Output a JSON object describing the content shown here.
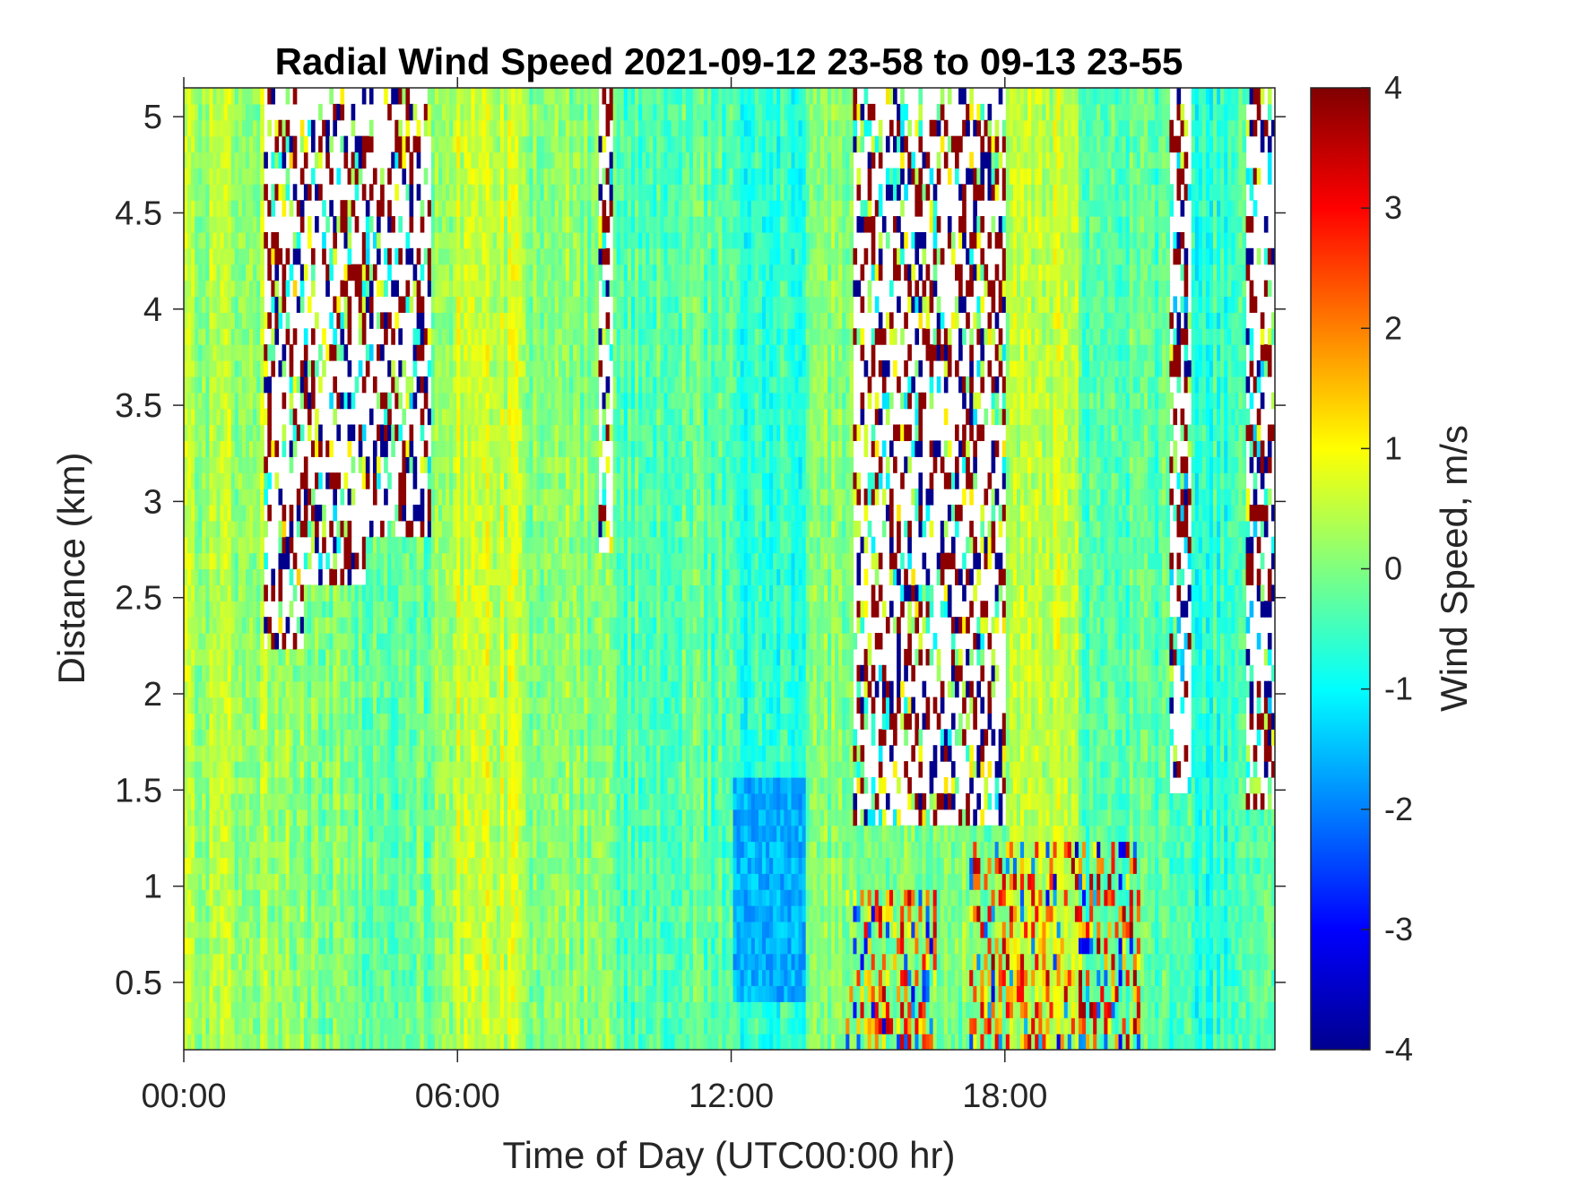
{
  "chart_data": {
    "type": "heatmap",
    "title": "Radial Wind Speed 2021-09-12 23-58 to 09-13 23-55",
    "xlabel": "Time of Day (UTC00:00 hr)",
    "ylabel": "Distance (km)",
    "colorbar_label": "Wind Speed, m/s",
    "colormap": "jet",
    "x_range_hours": [
      0,
      23.92
    ],
    "x_ticks": [
      {
        "value": 0,
        "label": "00:00"
      },
      {
        "value": 6,
        "label": "06:00"
      },
      {
        "value": 12,
        "label": "12:00"
      },
      {
        "value": 18,
        "label": "18:00"
      }
    ],
    "ylim": [
      0.15,
      5.15
    ],
    "y_ticks": [
      {
        "value": 0.5,
        "label": "0.5"
      },
      {
        "value": 1,
        "label": "1"
      },
      {
        "value": 1.5,
        "label": "1.5"
      },
      {
        "value": 2,
        "label": "2"
      },
      {
        "value": 2.5,
        "label": "2.5"
      },
      {
        "value": 3,
        "label": "3"
      },
      {
        "value": 3.5,
        "label": "3.5"
      },
      {
        "value": 4,
        "label": "4"
      },
      {
        "value": 4.5,
        "label": "4.5"
      },
      {
        "value": 5,
        "label": "5"
      }
    ],
    "clim": [
      -4,
      4
    ],
    "colorbar_ticks": [
      {
        "value": 4,
        "label": "4"
      },
      {
        "value": 3,
        "label": "3"
      },
      {
        "value": 2,
        "label": "2"
      },
      {
        "value": 1,
        "label": "1"
      },
      {
        "value": 0,
        "label": "0"
      },
      {
        "value": -1,
        "label": "-1"
      },
      {
        "value": -2,
        "label": "-2"
      },
      {
        "value": -3,
        "label": "-3"
      },
      {
        "value": -4,
        "label": "-4"
      }
    ],
    "time_segments": [
      {
        "t0": 0.0,
        "t1": 1.75,
        "base": 0.3,
        "valid_top": 5.15
      },
      {
        "t0": 1.75,
        "t1": 2.6,
        "base": 0.2,
        "valid_top": 2.25
      },
      {
        "t0": 2.6,
        "t1": 4.0,
        "base": -0.1,
        "valid_top": 2.6
      },
      {
        "t0": 4.0,
        "t1": 5.45,
        "base": -0.2,
        "valid_top": 2.85
      },
      {
        "t0": 5.45,
        "t1": 6.0,
        "base": 0.2,
        "valid_top": 5.15
      },
      {
        "t0": 6.0,
        "t1": 7.5,
        "base": 0.6,
        "valid_top": 5.15
      },
      {
        "t0": 7.5,
        "t1": 9.1,
        "base": 0.1,
        "valid_top": 5.15
      },
      {
        "t0": 9.1,
        "t1": 9.4,
        "base": 0.0,
        "valid_top": 2.75
      },
      {
        "t0": 9.4,
        "t1": 12.0,
        "base": -0.3,
        "valid_top": 5.15
      },
      {
        "t0": 12.0,
        "t1": 13.6,
        "base": -0.6,
        "valid_top": 5.15
      },
      {
        "t0": 13.6,
        "t1": 14.7,
        "base": 0.1,
        "valid_top": 5.15
      },
      {
        "t0": 14.7,
        "t1": 18.0,
        "base": 0.0,
        "valid_top": 1.35
      },
      {
        "t0": 18.0,
        "t1": 19.6,
        "base": 0.5,
        "valid_top": 5.15
      },
      {
        "t0": 19.6,
        "t1": 21.6,
        "base": -0.3,
        "valid_top": 5.15
      },
      {
        "t0": 21.6,
        "t1": 22.1,
        "base": -0.4,
        "valid_top": 1.5
      },
      {
        "t0": 22.1,
        "t1": 23.3,
        "base": -0.6,
        "valid_top": 5.15
      },
      {
        "t0": 23.3,
        "t1": 23.92,
        "base": -0.3,
        "valid_top": 1.4
      }
    ],
    "near_range_strong_winds": [
      {
        "t0": 14.5,
        "t1": 16.5,
        "max_km": 1.0,
        "amplitude": 3.5
      },
      {
        "t0": 17.2,
        "t1": 21.0,
        "max_km": 1.2,
        "amplitude": 3.8
      }
    ],
    "negative_patch": {
      "t0": 12.0,
      "t1": 13.6,
      "d0": 0.4,
      "d1": 1.6,
      "value": -1.6
    },
    "grid": false
  }
}
